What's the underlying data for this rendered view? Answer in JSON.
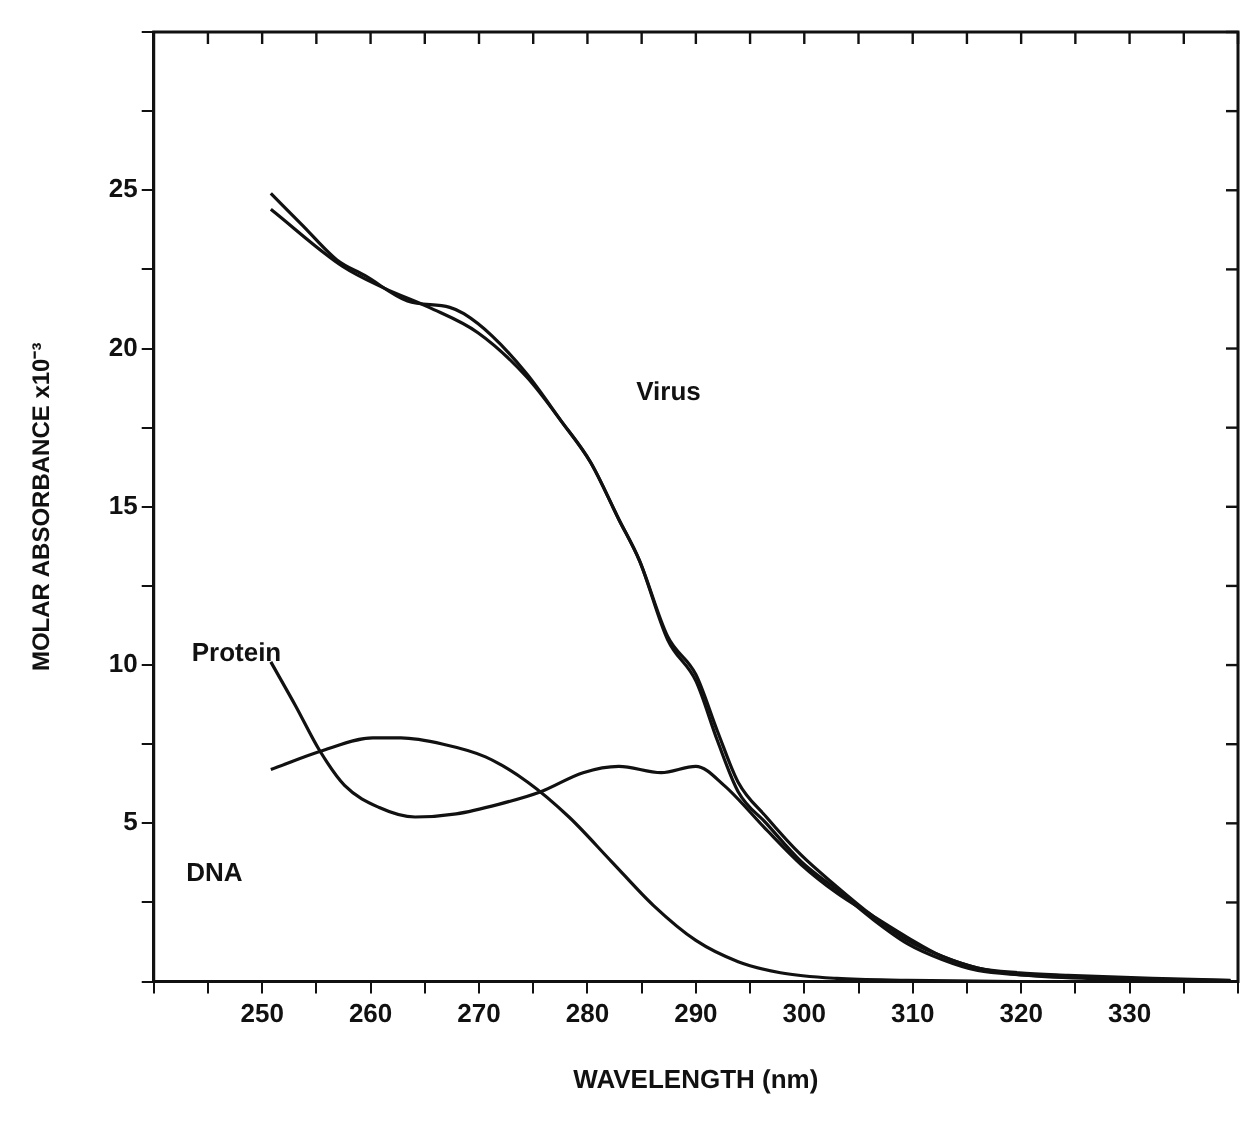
{
  "chart_data": {
    "type": "line",
    "xlabel": "WAVELENGTH (nm)",
    "ylabel": "MOLAR ABSORBANCE x10⁻³",
    "xlim": [
      240,
      340
    ],
    "xticks": [
      {
        "value": 240,
        "label": null
      },
      {
        "value": 245,
        "label": null
      },
      250,
      {
        "value": 255,
        "label": null
      },
      260,
      {
        "value": 265,
        "label": null
      },
      270,
      {
        "value": 275,
        "label": null
      },
      280,
      {
        "value": 285,
        "label": null
      },
      290,
      {
        "value": 295,
        "label": null
      },
      300,
      {
        "value": 305,
        "label": null
      },
      310,
      {
        "value": 315,
        "label": null
      },
      320,
      {
        "value": 325,
        "label": null
      },
      330,
      {
        "value": 335,
        "label": null
      },
      {
        "value": 340,
        "label": null
      }
    ],
    "ylim": [
      0,
      30
    ],
    "yticks": [
      {
        "value": 0,
        "label": null
      },
      {
        "value": 2.5,
        "label": null
      },
      5,
      {
        "value": 7.5,
        "label": null
      },
      10,
      {
        "value": 12.5,
        "label": null
      },
      15,
      {
        "value": 17.5,
        "label": null
      },
      20,
      {
        "value": 22.5,
        "label": null
      },
      25,
      {
        "value": 27.5,
        "label": null
      },
      {
        "value": 30,
        "label": null
      }
    ],
    "grid": false,
    "legend": false,
    "marker": "none",
    "line_style": "solid",
    "series": [
      {
        "color": "#111111",
        "x": [
          250.8,
          253.7,
          256.9,
          259.5,
          263.4,
          267.3,
          268.6,
          271.2,
          274.4,
          277.6,
          280.3,
          282.9,
          284.8,
          287.4,
          290,
          292,
          293.9,
          296.5,
          299.7,
          303,
          306.2,
          309.5,
          312.7,
          316,
          319.8,
          324.3,
          332.1,
          339.3
        ],
        "values": [
          24.9,
          23.9,
          22.8,
          22.3,
          21.5,
          21.3,
          21.1,
          20.4,
          19.2,
          17.7,
          16.4,
          14.6,
          13.3,
          10.9,
          9.7,
          7.9,
          6.3,
          5.2,
          4,
          3,
          2.1,
          1.3,
          0.8,
          0.43,
          0.28,
          0.2,
          0.1,
          0.04
        ]
      },
      {
        "color": "#111111",
        "x": [
          250.8,
          257.4,
          261.3,
          265.4,
          269.9,
          274.4,
          277.6,
          280.3,
          282.9,
          284.8,
          287.4,
          290,
          292,
          293.9,
          296.5,
          299.7,
          303,
          306.2,
          309.5,
          312.7,
          316,
          319.8,
          324.3,
          332.1,
          339.3
        ],
        "values": [
          24.4,
          22.6,
          21.9,
          21.3,
          20.5,
          19.1,
          17.7,
          16.4,
          14.6,
          13.3,
          10.8,
          9.5,
          7.6,
          6,
          5,
          3.8,
          2.9,
          2,
          1.2,
          0.7,
          0.35,
          0.22,
          0.15,
          0.08,
          0.03
        ]
      },
      {
        "color": "#111111",
        "x": [
          250.8,
          255.6,
          260.2,
          262.8,
          266.7,
          270.6,
          274.5,
          278.3,
          282.2,
          286.1,
          290,
          293.9,
          297.8,
          303,
          309.5,
          320
        ],
        "values": [
          6.7,
          7.3,
          7.7,
          7.7,
          7.5,
          7.1,
          6.3,
          5.2,
          3.8,
          2.4,
          1.3,
          0.63,
          0.28,
          0.1,
          0.04,
          0
        ]
      },
      {
        "color": "#111111",
        "x": [
          250.8,
          253.1,
          255.3,
          257.6,
          260.8,
          264.1,
          267.9,
          271.8,
          275.7,
          279.6,
          282.9,
          286.8,
          290,
          292.6,
          296.5,
          299.7,
          303,
          306.2,
          309.5,
          312.7,
          316,
          320.4,
          328.4,
          339.3
        ],
        "values": [
          10.1,
          8.7,
          7.3,
          6.2,
          5.5,
          5.2,
          5.3,
          5.6,
          6,
          6.6,
          6.8,
          6.6,
          6.8,
          6.2,
          4.8,
          3.7,
          2.8,
          2.1,
          1.4,
          0.8,
          0.43,
          0.2,
          0.08,
          0.02
        ]
      }
    ],
    "annotations": [
      "Virus",
      "Protein",
      "DNA"
    ]
  }
}
